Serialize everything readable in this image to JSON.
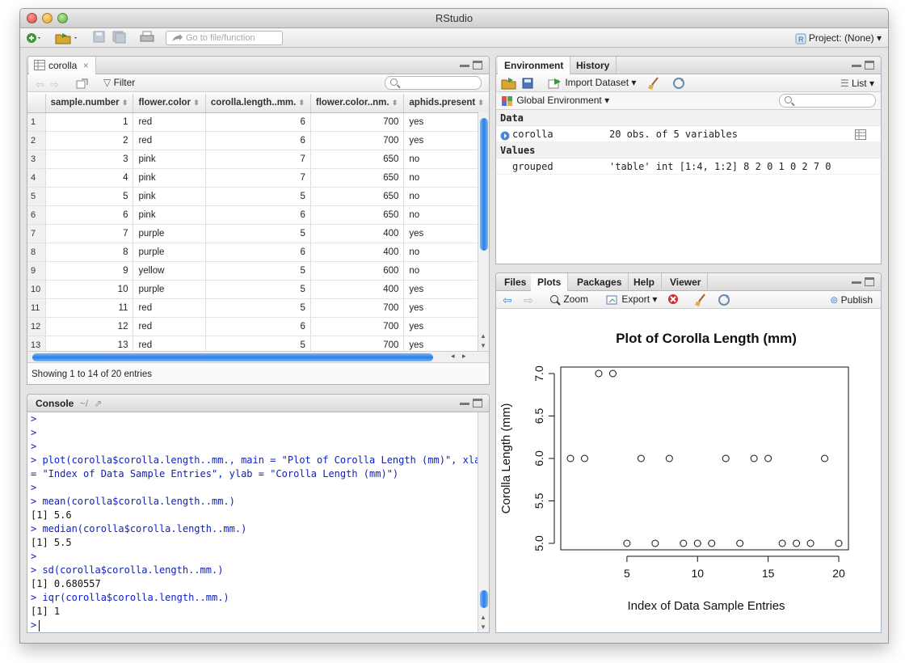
{
  "window": {
    "title": "RStudio"
  },
  "toolbar": {
    "goto_placeholder": "Go to file/function",
    "project_label": "Project: (None)"
  },
  "data_viewer": {
    "tab_label": "corolla",
    "filter_label": "Filter",
    "columns": [
      "sample.number",
      "flower.color",
      "corolla.length..mm.",
      "flower.color..nm.",
      "aphids.present"
    ],
    "rows": [
      [
        "1",
        "1",
        "red",
        "6",
        "700",
        "yes"
      ],
      [
        "2",
        "2",
        "red",
        "6",
        "700",
        "yes"
      ],
      [
        "3",
        "3",
        "pink",
        "7",
        "650",
        "no"
      ],
      [
        "4",
        "4",
        "pink",
        "7",
        "650",
        "no"
      ],
      [
        "5",
        "5",
        "pink",
        "5",
        "650",
        "no"
      ],
      [
        "6",
        "6",
        "pink",
        "6",
        "650",
        "no"
      ],
      [
        "7",
        "7",
        "purple",
        "5",
        "400",
        "yes"
      ],
      [
        "8",
        "8",
        "purple",
        "6",
        "400",
        "no"
      ],
      [
        "9",
        "9",
        "yellow",
        "5",
        "600",
        "no"
      ],
      [
        "10",
        "10",
        "purple",
        "5",
        "400",
        "yes"
      ],
      [
        "11",
        "11",
        "red",
        "5",
        "700",
        "yes"
      ],
      [
        "12",
        "12",
        "red",
        "6",
        "700",
        "yes"
      ],
      [
        "13",
        "13",
        "red",
        "5",
        "700",
        "yes"
      ]
    ],
    "status": "Showing 1 to 14 of 20 entries"
  },
  "console": {
    "tab_label": "Console",
    "path": "~/",
    "lines": [
      {
        "type": "cmd",
        "text": ">"
      },
      {
        "type": "cmd",
        "text": ">"
      },
      {
        "type": "cmd",
        "text": ">"
      },
      {
        "type": "cmd",
        "text": "> plot(corolla$corolla.length..mm., main = \"Plot of Corolla Length (mm)\", xlab"
      },
      {
        "type": "cmd",
        "text": "= \"Index of Data Sample Entries\", ylab = \"Corolla Length (mm)\")"
      },
      {
        "type": "cmd",
        "text": ">"
      },
      {
        "type": "cmd",
        "text": "> mean(corolla$corolla.length..mm.)"
      },
      {
        "type": "out",
        "text": "[1] 5.6"
      },
      {
        "type": "cmd",
        "text": "> median(corolla$corolla.length..mm.)"
      },
      {
        "type": "out",
        "text": "[1] 5.5"
      },
      {
        "type": "cmd",
        "text": ">"
      },
      {
        "type": "cmd",
        "text": "> sd(corolla$corolla.length..mm.)"
      },
      {
        "type": "out",
        "text": "[1] 0.680557"
      },
      {
        "type": "cmd",
        "text": "> iqr(corolla$corolla.length..mm.)"
      },
      {
        "type": "out",
        "text": "[1] 1"
      },
      {
        "type": "cmd",
        "text": ">"
      }
    ]
  },
  "environment": {
    "tabs": [
      "Environment",
      "History"
    ],
    "import_label": "Import Dataset",
    "list_label": "List",
    "scope_label": "Global Environment",
    "data_header": "Data",
    "values_header": "Values",
    "data_items": [
      {
        "name": "corolla",
        "value": "20 obs. of 5 variables"
      }
    ],
    "value_items": [
      {
        "name": "grouped",
        "value": "'table' int [1:4, 1:2] 8 2 0 1 0 2 7 0"
      }
    ]
  },
  "plots_pane": {
    "tabs": [
      "Files",
      "Plots",
      "Packages",
      "Help",
      "Viewer"
    ],
    "zoom_label": "Zoom",
    "export_label": "Export",
    "publish_label": "Publish"
  },
  "chart_data": {
    "type": "scatter",
    "title": "Plot of Corolla Length (mm)",
    "xlabel": "Index of Data Sample Entries",
    "ylabel": "Corolla Length (mm)",
    "x": [
      1,
      2,
      3,
      4,
      5,
      6,
      7,
      8,
      9,
      10,
      11,
      12,
      13,
      14,
      15,
      16,
      17,
      18,
      19,
      20
    ],
    "y": [
      6,
      6,
      7,
      7,
      5,
      6,
      5,
      6,
      5,
      5,
      5,
      6,
      5,
      6,
      6,
      5,
      5,
      5,
      6,
      5
    ],
    "xlim": [
      1,
      20
    ],
    "ylim": [
      5.0,
      7.0
    ],
    "xticks": [
      "5",
      "10",
      "15",
      "20"
    ],
    "yticks": [
      "5.0",
      "5.5",
      "6.0",
      "6.5",
      "7.0"
    ],
    "grid": false
  },
  "colors": {
    "accent": "#2a7ee8",
    "console_cmd": "#1020c0"
  }
}
